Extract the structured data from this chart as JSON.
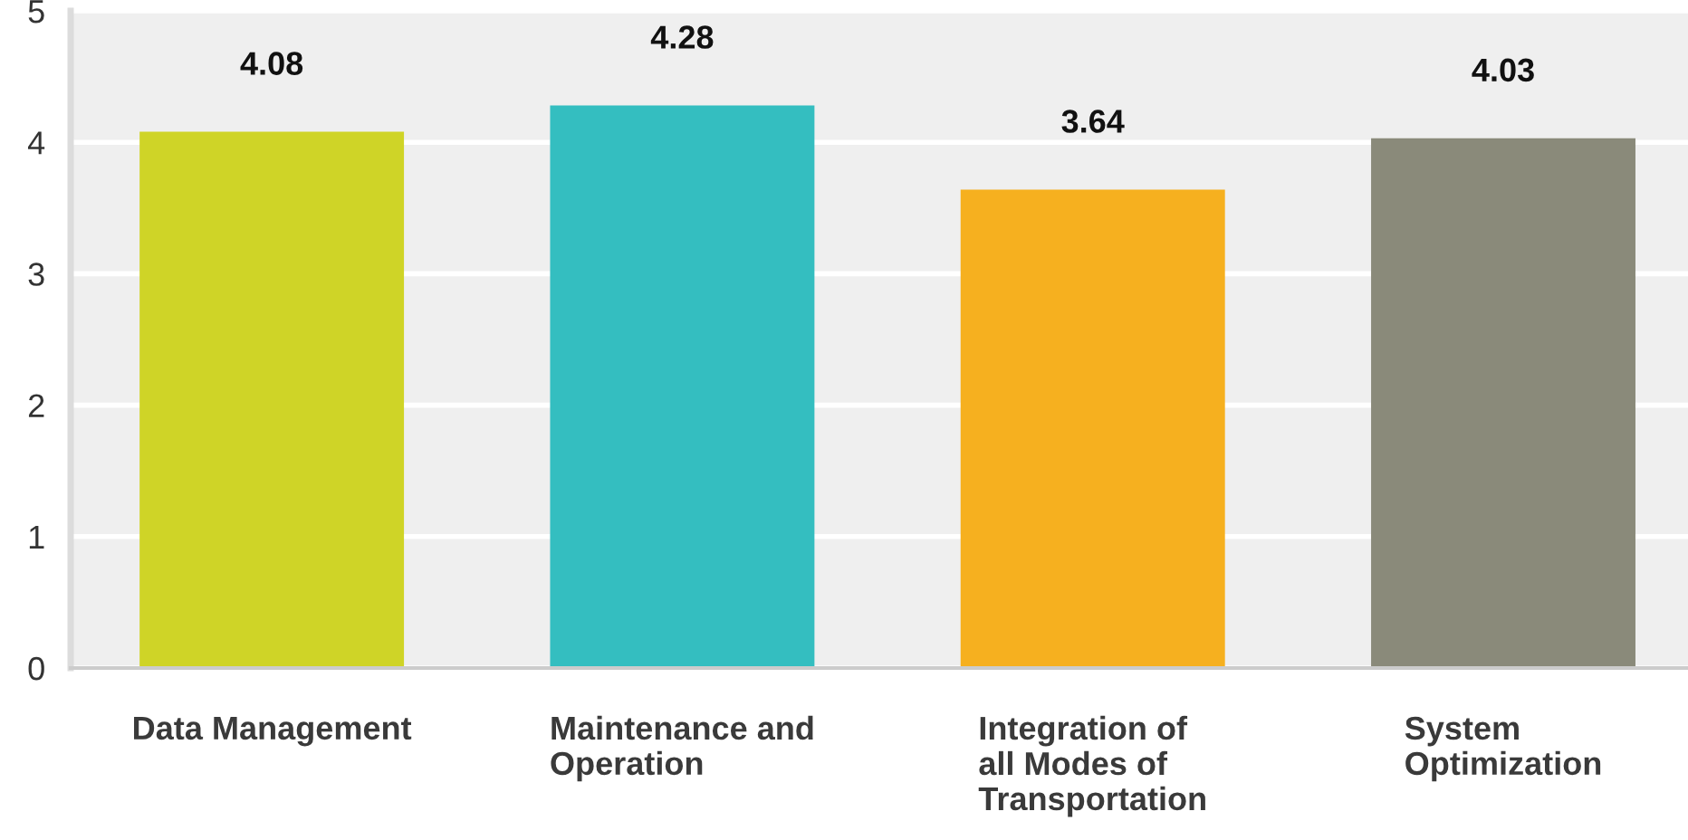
{
  "chart_data": {
    "type": "bar",
    "categories": [
      "Data Management",
      "Maintenance and Operation",
      "Integration of all Modes of Transportation",
      "System Optimization"
    ],
    "values": [
      4.08,
      4.28,
      3.64,
      4.03
    ],
    "colors": [
      "#cfd427",
      "#34bec0",
      "#f6b01f",
      "#8a8a7a"
    ],
    "ylim": [
      0,
      5
    ],
    "yticks": [
      0,
      1,
      2,
      3,
      4,
      5
    ],
    "grid": "y",
    "data_labels": true
  }
}
